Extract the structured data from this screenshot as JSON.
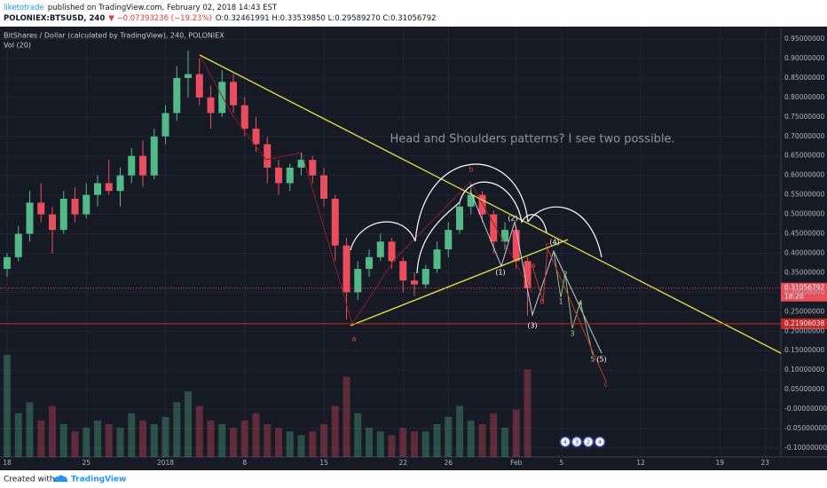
{
  "header": {
    "author": "liketotrade",
    "published": "published on TradingView.com, February 02, 2018 14:43 EST",
    "symbol": "POLONIEX:BTSUSD, 240",
    "change": "▼ −0.07393236 (−19.23%)",
    "ohlc": "O:0.32461991 H:0.33539850 L:0.29589270 C:0.31056792"
  },
  "footer": {
    "created": "Created with",
    "brand": "TradingView"
  },
  "chart_data": {
    "type": "candlestick",
    "title": "BitShares / Dollar (calculated by TradingView), 240, POLONIEX",
    "volume_label": "Vol (20)",
    "up_color": "#53b987",
    "down_color": "#eb4d5c",
    "grid": true,
    "categories": [
      "18",
      null,
      null,
      null,
      null,
      null,
      null,
      "25",
      null,
      null,
      null,
      null,
      null,
      null,
      "2018",
      null,
      null,
      null,
      null,
      null,
      null,
      "8",
      null,
      null,
      null,
      null,
      null,
      null,
      "15",
      null,
      null,
      null,
      null,
      null,
      null,
      "22",
      null,
      null,
      null,
      "26",
      null,
      null,
      null,
      null,
      null,
      "Feb",
      null,
      null,
      null,
      "5",
      null,
      null,
      null,
      null,
      null,
      null,
      "12",
      null,
      null,
      null,
      null,
      null,
      null,
      "19",
      null,
      null,
      null,
      "23",
      null
    ],
    "open": [
      0.36,
      0.39,
      0.45,
      0.53,
      0.5,
      0.46,
      0.54,
      0.5,
      0.55,
      0.58,
      0.56,
      0.6,
      0.65,
      0.6,
      0.7,
      0.76,
      0.85,
      0.86,
      0.8,
      0.76,
      0.84,
      0.78,
      0.72,
      0.68,
      0.62,
      0.58,
      0.62,
      0.64,
      0.6,
      0.54,
      0.42,
      0.3,
      0.36,
      0.39,
      0.43,
      0.38,
      0.33,
      0.32,
      0.36,
      0.41,
      0.46,
      0.52,
      0.55,
      0.5,
      0.43,
      0.46,
      0.38,
      null,
      null,
      null,
      null,
      null,
      null,
      null,
      null,
      null,
      null,
      null,
      null,
      null,
      null,
      null,
      null,
      null,
      null,
      null,
      null,
      null,
      null
    ],
    "high": [
      0.4,
      0.47,
      0.56,
      0.58,
      0.52,
      0.56,
      0.57,
      0.58,
      0.6,
      0.64,
      0.62,
      0.67,
      0.69,
      0.72,
      0.78,
      0.88,
      0.92,
      0.9,
      0.83,
      0.87,
      0.86,
      0.8,
      0.75,
      0.7,
      0.64,
      0.63,
      0.66,
      0.65,
      0.62,
      0.55,
      0.44,
      0.38,
      0.41,
      0.45,
      0.44,
      0.39,
      0.35,
      0.37,
      0.43,
      0.48,
      0.53,
      0.58,
      0.56,
      0.51,
      0.48,
      0.47,
      0.39,
      null,
      null,
      null,
      null,
      null,
      null,
      null,
      null,
      null,
      null,
      null,
      null,
      null,
      null,
      null,
      null,
      null,
      null,
      null,
      null,
      null,
      null
    ],
    "low": [
      0.34,
      0.38,
      0.43,
      0.48,
      0.4,
      0.45,
      0.48,
      0.49,
      0.52,
      0.55,
      0.52,
      0.58,
      0.57,
      0.59,
      0.68,
      0.74,
      0.8,
      0.78,
      0.72,
      0.75,
      0.76,
      0.7,
      0.66,
      0.58,
      0.55,
      0.56,
      0.6,
      0.58,
      0.52,
      0.38,
      0.23,
      0.28,
      0.34,
      0.38,
      0.36,
      0.3,
      0.29,
      0.31,
      0.35,
      0.39,
      0.45,
      0.5,
      0.48,
      0.4,
      0.41,
      0.36,
      0.24,
      null,
      null,
      null,
      null,
      null,
      null,
      null,
      null,
      null,
      null,
      null,
      null,
      null,
      null,
      null,
      null,
      null,
      null,
      null,
      null,
      null,
      null
    ],
    "close": [
      0.39,
      0.45,
      0.53,
      0.5,
      0.46,
      0.54,
      0.5,
      0.55,
      0.58,
      0.56,
      0.6,
      0.65,
      0.6,
      0.7,
      0.76,
      0.85,
      0.86,
      0.8,
      0.76,
      0.84,
      0.78,
      0.72,
      0.68,
      0.62,
      0.58,
      0.62,
      0.64,
      0.6,
      0.54,
      0.42,
      0.3,
      0.36,
      0.39,
      0.43,
      0.38,
      0.33,
      0.32,
      0.36,
      0.41,
      0.46,
      0.52,
      0.55,
      0.5,
      0.43,
      0.46,
      0.38,
      0.31,
      null,
      null,
      null,
      null,
      null,
      null,
      null,
      null,
      null,
      null,
      null,
      null,
      null,
      null,
      null,
      null,
      null,
      null,
      null,
      null,
      null,
      null
    ],
    "volume": [
      28,
      12,
      15,
      10,
      14,
      9,
      7,
      8,
      10,
      9,
      8,
      12,
      10,
      9,
      11,
      15,
      18,
      14,
      10,
      9,
      8,
      10,
      12,
      9,
      8,
      7,
      6,
      7,
      9,
      14,
      22,
      12,
      8,
      7,
      6,
      8,
      7,
      7,
      9,
      11,
      14,
      10,
      9,
      12,
      8,
      13,
      24,
      null,
      null,
      null,
      null,
      null,
      null,
      null,
      null,
      null,
      null,
      null,
      null,
      null,
      null,
      null,
      null,
      null,
      null,
      null,
      null,
      null,
      null
    ],
    "ylim": [
      -0.1,
      0.95
    ],
    "yticks": [
      {
        "value": 0.95,
        "label": "0.95000000"
      },
      {
        "value": 0.9,
        "label": "0.90000000"
      },
      {
        "value": 0.85,
        "label": "0.85000000"
      },
      {
        "value": 0.8,
        "label": "0.80000000"
      },
      {
        "value": 0.75,
        "label": "0.75000000"
      },
      {
        "value": 0.7,
        "label": "0.70000000"
      },
      {
        "value": 0.65,
        "label": "0.65000000"
      },
      {
        "value": 0.6,
        "label": "0.60000000"
      },
      {
        "value": 0.55,
        "label": "0.55000000"
      },
      {
        "value": 0.5,
        "label": "0.50000000"
      },
      {
        "value": 0.45,
        "label": "0.45000000"
      },
      {
        "value": 0.4,
        "label": "0.40000000"
      },
      {
        "value": 0.35,
        "label": "0.35000000"
      },
      {
        "value": 0.3,
        "label": "0.30000000"
      },
      {
        "value": 0.25,
        "label": "0.25000000"
      },
      {
        "value": 0.2,
        "label": "0.20000000"
      },
      {
        "value": 0.15,
        "label": "0.15000000"
      },
      {
        "value": 0.1,
        "label": "0.10000000"
      },
      {
        "value": 0.05,
        "label": "0.05000000"
      },
      {
        "value": 0,
        "label": "-0.00000000"
      },
      {
        "value": -0.05,
        "label": "-0.05000000"
      },
      {
        "value": -0.1,
        "label": "-0.10000000"
      }
    ],
    "last_price": 0.31056792,
    "countdown": "18:20",
    "level": 0.21906038,
    "annotations": [
      "Head and Shoulders patterns?  I see two possible.",
      "a",
      "b",
      "(1)",
      "(2)",
      "(3)",
      "(4)",
      "(5)",
      "a",
      "b",
      "c",
      "c",
      "1",
      "2",
      "3",
      "4",
      "5"
    ],
    "events": [
      "4",
      "3",
      "2",
      "4"
    ]
  }
}
